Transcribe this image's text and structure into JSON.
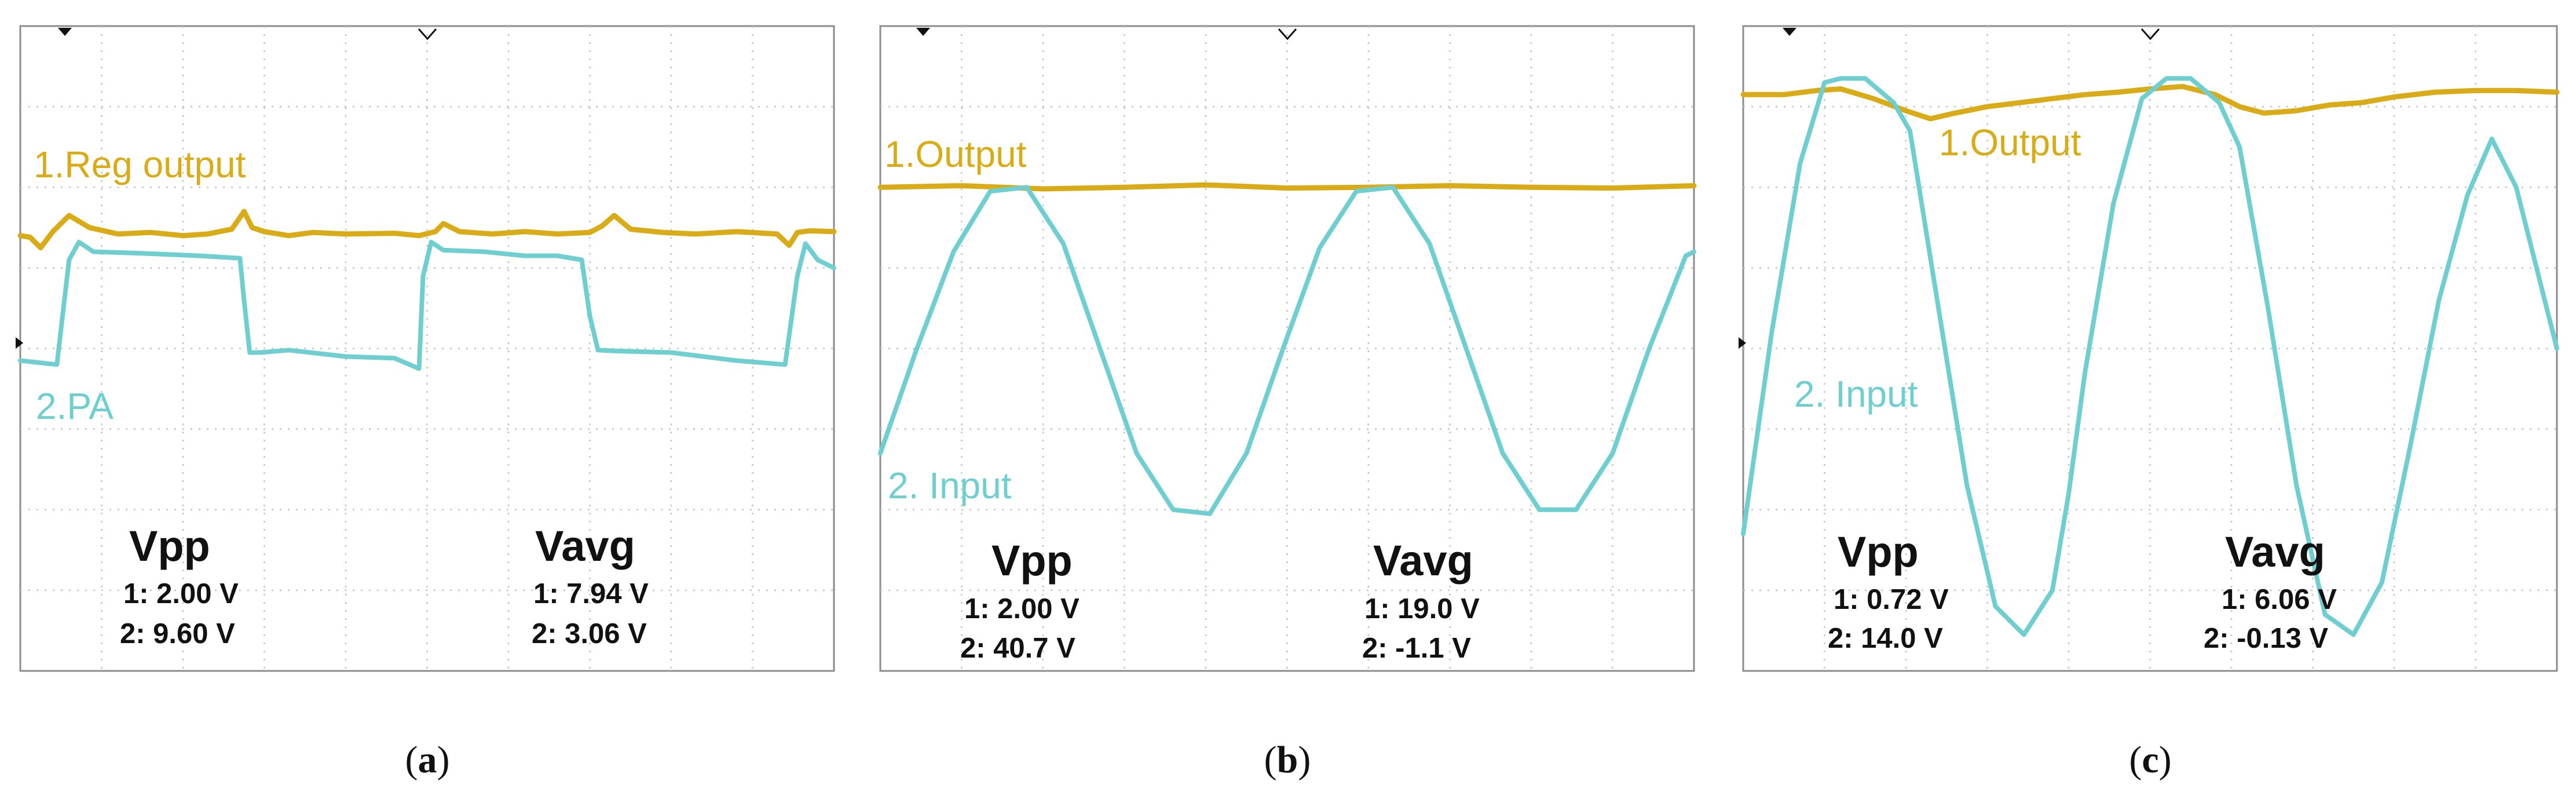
{
  "colors": {
    "ch1": "#d8ab17",
    "ch2": "#6fcfd0",
    "grid": "#c4c4c4",
    "frame": "#8c8c8c",
    "text": "#111111"
  },
  "icons": {
    "trigger_marker": "filled-triangle-down",
    "time_marker": "hollow-chevron-down",
    "ground_marker": "filled-triangle-right"
  },
  "chart_data": [
    {
      "type": "line",
      "caption": "a",
      "ch1_label": "1.Reg output",
      "ch2_label": "2.PA",
      "measure_vpp": {
        "title": "Vpp",
        "ch1": "1: 2.00 V",
        "ch2": "2: 9.60 V"
      },
      "measure_vavg": {
        "title": "Vavg",
        "ch1": "1: 7.94 V",
        "ch2": "2: 3.06 V"
      },
      "grid": {
        "xdiv": 10,
        "ydiv": 8
      },
      "xlim": [
        0,
        10
      ],
      "ylim": [
        -4,
        4
      ],
      "series": [
        {
          "name": "1.Reg output",
          "channel": 1,
          "color": "#d8ab17",
          "x": [
            0,
            0.12,
            0.25,
            0.4,
            0.6,
            0.85,
            1.2,
            1.6,
            2.0,
            2.3,
            2.6,
            2.75,
            2.85,
            3.0,
            3.3,
            3.6,
            4.0,
            4.6,
            4.9,
            5.1,
            5.2,
            5.4,
            5.8,
            6.2,
            6.6,
            7.0,
            7.15,
            7.3,
            7.5,
            7.9,
            8.3,
            8.8,
            9.3,
            9.45,
            9.55,
            9.7,
            10.0
          ],
          "y": [
            1.4,
            1.38,
            1.25,
            1.45,
            1.65,
            1.5,
            1.42,
            1.44,
            1.4,
            1.42,
            1.48,
            1.7,
            1.5,
            1.45,
            1.4,
            1.44,
            1.42,
            1.43,
            1.4,
            1.45,
            1.55,
            1.45,
            1.42,
            1.45,
            1.42,
            1.44,
            1.52,
            1.65,
            1.48,
            1.44,
            1.42,
            1.45,
            1.42,
            1.28,
            1.44,
            1.46,
            1.45
          ]
        },
        {
          "name": "2.PA",
          "channel": 2,
          "color": "#6fcfd0",
          "x": [
            0,
            0.45,
            0.6,
            0.72,
            0.9,
            1.5,
            2.2,
            2.7,
            2.75,
            2.82,
            2.95,
            3.3,
            4.0,
            4.6,
            4.9,
            4.95,
            5.05,
            5.2,
            5.7,
            6.2,
            6.6,
            6.9,
            7.0,
            7.1,
            7.3,
            8.0,
            8.8,
            9.4,
            9.55,
            9.65,
            9.8,
            10.0
          ],
          "y": [
            -0.15,
            -0.2,
            1.1,
            1.32,
            1.2,
            1.18,
            1.15,
            1.12,
            0.6,
            -0.05,
            -0.05,
            -0.02,
            -0.1,
            -0.12,
            -0.25,
            0.9,
            1.32,
            1.22,
            1.2,
            1.15,
            1.15,
            1.1,
            0.4,
            -0.02,
            -0.03,
            -0.05,
            -0.15,
            -0.2,
            0.9,
            1.3,
            1.1,
            1.0
          ]
        }
      ]
    },
    {
      "type": "line",
      "caption": "b",
      "ch1_label": "1.Output",
      "ch2_label": "2. Input",
      "measure_vpp": {
        "title": "Vpp",
        "ch1": "1: 2.00 V",
        "ch2": "2: 40.7 V"
      },
      "measure_vavg": {
        "title": "Vavg",
        "ch1": "1: 19.0 V",
        "ch2": "2: -1.1 V"
      },
      "grid": {
        "xdiv": 10,
        "ydiv": 8
      },
      "xlim": [
        0,
        10
      ],
      "ylim": [
        -4,
        4
      ],
      "series": [
        {
          "name": "1.Output",
          "channel": 1,
          "color": "#d8ab17",
          "x": [
            0,
            1,
            2,
            3,
            4,
            5,
            6,
            7,
            8,
            9,
            10
          ],
          "y": [
            2.0,
            2.02,
            1.98,
            2.0,
            2.03,
            1.99,
            2.0,
            2.02,
            2.0,
            1.99,
            2.02
          ]
        },
        {
          "name": "2. Input",
          "channel": 2,
          "color": "#6fcfd0",
          "x": [
            0,
            0.45,
            0.9,
            1.35,
            1.8,
            2.25,
            2.7,
            3.15,
            3.6,
            4.05,
            4.5,
            4.95,
            5.4,
            5.85,
            6.3,
            6.75,
            7.2,
            7.65,
            8.1,
            8.55,
            9.0,
            9.45,
            9.9,
            10.0
          ],
          "y": [
            -1.3,
            0.0,
            1.2,
            1.95,
            2.0,
            1.3,
            0.0,
            -1.3,
            -2.0,
            -2.05,
            -1.3,
            0.0,
            1.25,
            1.95,
            2.0,
            1.3,
            0.0,
            -1.3,
            -2.0,
            -2.0,
            -1.3,
            0.0,
            1.15,
            1.2
          ]
        }
      ]
    },
    {
      "type": "line",
      "caption": "c",
      "ch1_label": "1.Output",
      "ch2_label": "2. Input",
      "measure_vpp": {
        "title": "Vpp",
        "ch1": "1: 0.72 V",
        "ch2": "2: 14.0 V"
      },
      "measure_vavg": {
        "title": "Vavg",
        "ch1": "1: 6.06 V",
        "ch2": "2: -0.13 V"
      },
      "grid": {
        "xdiv": 10,
        "ydiv": 8
      },
      "xlim": [
        0,
        10
      ],
      "ylim": [
        -4,
        4
      ],
      "series": [
        {
          "name": "1.Output",
          "channel": 1,
          "color": "#d8ab17",
          "x": [
            0,
            0.5,
            0.9,
            1.2,
            1.6,
            2.0,
            2.3,
            2.6,
            3.0,
            3.4,
            3.8,
            4.2,
            4.6,
            5.0,
            5.4,
            5.8,
            6.1,
            6.4,
            6.8,
            7.2,
            7.6,
            8.0,
            8.5,
            9.0,
            9.5,
            10.0
          ],
          "y": [
            3.15,
            3.15,
            3.2,
            3.22,
            3.1,
            2.95,
            2.85,
            2.92,
            3.0,
            3.05,
            3.1,
            3.15,
            3.18,
            3.22,
            3.25,
            3.15,
            3.0,
            2.92,
            2.95,
            3.02,
            3.05,
            3.12,
            3.18,
            3.2,
            3.2,
            3.18
          ]
        },
        {
          "name": "2. Input",
          "channel": 2,
          "color": "#6fcfd0",
          "x": [
            0,
            0.35,
            0.7,
            1.0,
            1.2,
            1.5,
            1.85,
            2.05,
            2.4,
            2.75,
            3.1,
            3.45,
            3.8,
            4.0,
            4.2,
            4.55,
            4.9,
            5.2,
            5.5,
            5.85,
            6.1,
            6.45,
            6.8,
            7.15,
            7.5,
            7.85,
            8.2,
            8.55,
            8.9,
            9.2,
            9.5,
            9.8,
            10.0
          ],
          "y": [
            -2.3,
            0.2,
            2.3,
            3.3,
            3.35,
            3.35,
            3.05,
            2.7,
            0.5,
            -1.7,
            -3.2,
            -3.55,
            -3.0,
            -1.8,
            -0.3,
            1.8,
            3.1,
            3.35,
            3.35,
            3.05,
            2.5,
            0.5,
            -1.7,
            -3.3,
            -3.55,
            -2.9,
            -1.2,
            0.6,
            1.9,
            2.6,
            2.0,
            0.8,
            0.0
          ]
        }
      ]
    }
  ]
}
